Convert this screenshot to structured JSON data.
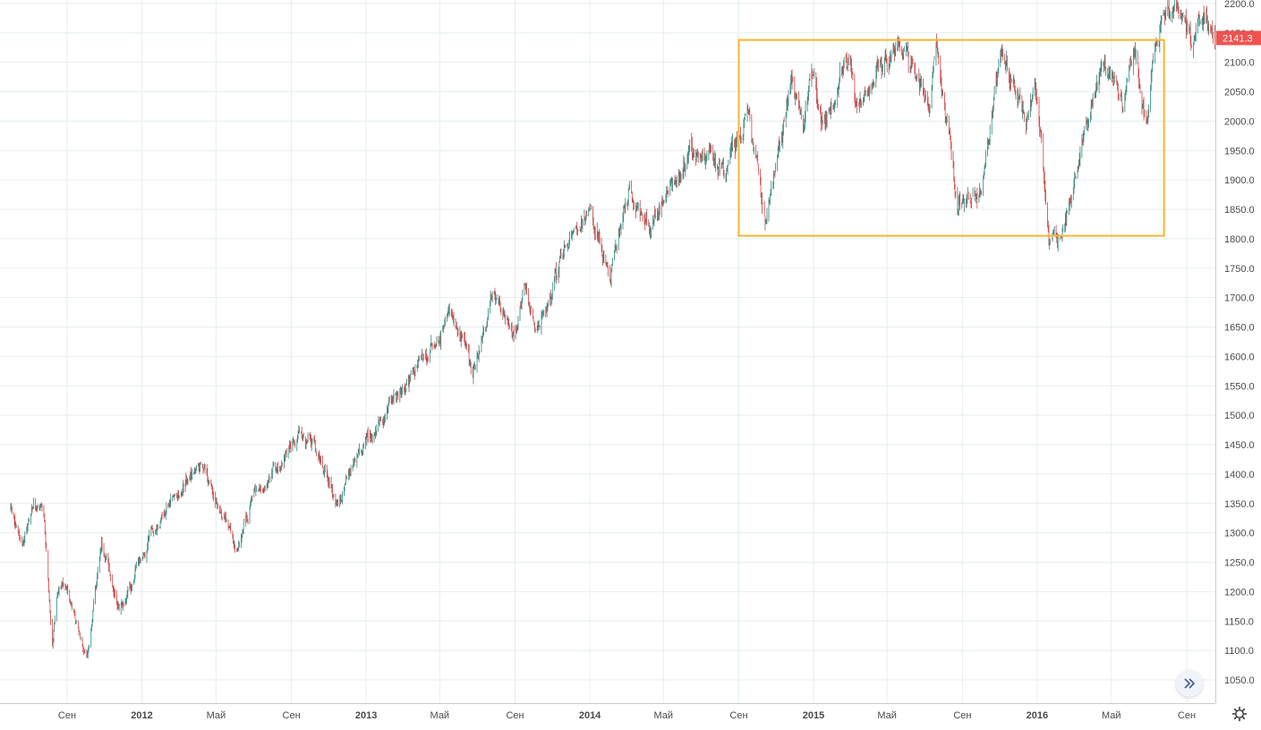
{
  "chart_data": {
    "type": "candlestick",
    "instrument_note": "",
    "y_axis": {
      "min": 1020,
      "max": 2205,
      "position": "right",
      "ticks": [
        1050,
        1100,
        1150,
        1200,
        1250,
        1300,
        1350,
        1400,
        1450,
        1500,
        1550,
        1600,
        1650,
        1700,
        1750,
        1800,
        1850,
        1900,
        1950,
        2000,
        2050,
        2100,
        2150,
        2200
      ],
      "tick_format": "0.0"
    },
    "x_axis": {
      "range": [
        "2011-06-01",
        "2016-10-24"
      ],
      "ticks": [
        {
          "label": "Сен",
          "date": "2011-09-01",
          "bold": false
        },
        {
          "label": "2012",
          "date": "2012-01-01",
          "bold": true
        },
        {
          "label": "Май",
          "date": "2012-05-01",
          "bold": false
        },
        {
          "label": "Сен",
          "date": "2012-09-01",
          "bold": false
        },
        {
          "label": "2013",
          "date": "2013-01-01",
          "bold": true
        },
        {
          "label": "Май",
          "date": "2013-05-01",
          "bold": false
        },
        {
          "label": "Сен",
          "date": "2013-09-01",
          "bold": false
        },
        {
          "label": "2014",
          "date": "2014-01-01",
          "bold": true
        },
        {
          "label": "Май",
          "date": "2014-05-01",
          "bold": false
        },
        {
          "label": "Сен",
          "date": "2014-09-01",
          "bold": false
        },
        {
          "label": "2015",
          "date": "2015-01-01",
          "bold": true
        },
        {
          "label": "Май",
          "date": "2015-05-01",
          "bold": false
        },
        {
          "label": "Сен",
          "date": "2015-09-01",
          "bold": false
        },
        {
          "label": "2016",
          "date": "2016-01-01",
          "bold": true
        },
        {
          "label": "Май",
          "date": "2016-05-01",
          "bold": false
        },
        {
          "label": "Сен",
          "date": "2016-09-01",
          "bold": false
        }
      ]
    },
    "anchors": [
      [
        "2011-06-01",
        1340
      ],
      [
        "2011-06-20",
        1270
      ],
      [
        "2011-07-07",
        1350
      ],
      [
        "2011-07-25",
        1330
      ],
      [
        "2011-08-08",
        1120
      ],
      [
        "2011-08-15",
        1200
      ],
      [
        "2011-08-31",
        1215
      ],
      [
        "2011-09-22",
        1130
      ],
      [
        "2011-10-04",
        1090
      ],
      [
        "2011-10-27",
        1290
      ],
      [
        "2011-11-25",
        1160
      ],
      [
        "2011-12-30",
        1255
      ],
      [
        "2012-02-15",
        1350
      ],
      [
        "2012-04-02",
        1415
      ],
      [
        "2012-04-20",
        1380
      ],
      [
        "2012-06-04",
        1280
      ],
      [
        "2012-07-03",
        1370
      ],
      [
        "2012-08-15",
        1410
      ],
      [
        "2012-09-14",
        1470
      ],
      [
        "2012-10-15",
        1440
      ],
      [
        "2012-11-15",
        1350
      ],
      [
        "2012-12-20",
        1440
      ],
      [
        "2013-01-31",
        1500
      ],
      [
        "2013-03-15",
        1560
      ],
      [
        "2013-05-21",
        1680
      ],
      [
        "2013-06-24",
        1570
      ],
      [
        "2013-07-24",
        1700
      ],
      [
        "2013-08-30",
        1630
      ],
      [
        "2013-09-18",
        1720
      ],
      [
        "2013-10-08",
        1650
      ],
      [
        "2013-11-29",
        1810
      ],
      [
        "2013-12-31",
        1848
      ],
      [
        "2014-02-03",
        1740
      ],
      [
        "2014-03-07",
        1880
      ],
      [
        "2014-04-11",
        1815
      ],
      [
        "2014-06-20",
        1960
      ],
      [
        "2014-07-31",
        1930
      ],
      [
        "2014-08-08",
        1910
      ],
      [
        "2014-09-18",
        2015
      ],
      [
        "2014-10-15",
        1820
      ],
      [
        "2014-11-28",
        2075
      ],
      [
        "2014-12-16",
        1980
      ],
      [
        "2014-12-29",
        2090
      ],
      [
        "2015-01-15",
        1990
      ],
      [
        "2015-03-02",
        2120
      ],
      [
        "2015-03-10",
        2040
      ],
      [
        "2015-05-20",
        2130
      ],
      [
        "2015-07-08",
        2040
      ],
      [
        "2015-07-20",
        2130
      ],
      [
        "2015-08-24",
        1867
      ],
      [
        "2015-09-28",
        1870
      ],
      [
        "2015-11-03",
        2115
      ],
      [
        "2015-12-14",
        2000
      ],
      [
        "2015-12-29",
        2080
      ],
      [
        "2016-01-20",
        1812
      ],
      [
        "2016-02-11",
        1810
      ],
      [
        "2016-04-20",
        2110
      ],
      [
        "2016-05-19",
        2035
      ],
      [
        "2016-06-08",
        2120
      ],
      [
        "2016-06-27",
        1990
      ],
      [
        "2016-07-15",
        2165
      ],
      [
        "2016-08-15",
        2190
      ],
      [
        "2016-09-09",
        2125
      ],
      [
        "2016-09-22",
        2175
      ],
      [
        "2016-10-24",
        2141
      ]
    ],
    "last_price": {
      "value": 2141.3,
      "label": "2141.3"
    },
    "annotations": [
      {
        "type": "rectangle",
        "color": "#f5b62e",
        "x1": "2014-09-01",
        "x2": "2016-07-26",
        "y1": 1805,
        "y2": 2138
      }
    ],
    "colors": {
      "up": "#26a69a",
      "down": "#ef5350",
      "wick_up": "#4a7a72",
      "wick_down": "#b84848",
      "grid": "#e6eef0",
      "axis_text": "#4a4a4a",
      "last_price_bg": "#ef5350"
    },
    "grid": true,
    "legend": "none"
  },
  "controls": {
    "scroll_button_icon": "double-chevron-right-icon",
    "settings_icon": "gear-icon"
  }
}
